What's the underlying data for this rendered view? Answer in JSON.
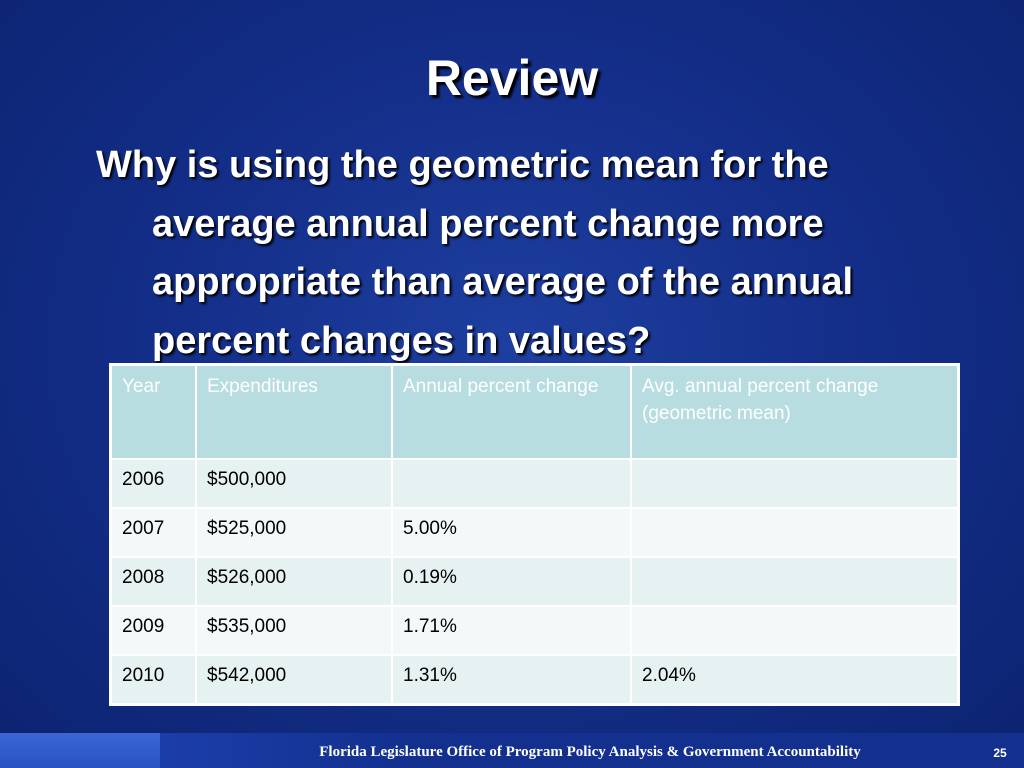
{
  "slide": {
    "title": "Review",
    "question": "Why is using the geometric mean for the average annual percent change more appropriate than average of the annual percent changes in values?"
  },
  "table": {
    "headers": [
      "Year",
      "Expenditures",
      "Annual percent change",
      "Avg. annual percent change (geometric mean)"
    ],
    "rows": [
      [
        "2006",
        "$500,000",
        "",
        ""
      ],
      [
        "2007",
        "$525,000",
        "5.00%",
        ""
      ],
      [
        "2008",
        "$526,000",
        "0.19%",
        ""
      ],
      [
        "2009",
        "$535,000",
        "1.71%",
        ""
      ],
      [
        "2010",
        "$542,000",
        "1.31%",
        "2.04%"
      ]
    ]
  },
  "footer": {
    "text": "Florida Legislature Office of Program Policy Analysis & Government Accountability",
    "page_number": "25"
  },
  "colors": {
    "background": "#142f8a",
    "table_header": "#b7dde0",
    "table_row_odd": "#e6f2f2",
    "table_row_even": "#f3f9f9"
  }
}
